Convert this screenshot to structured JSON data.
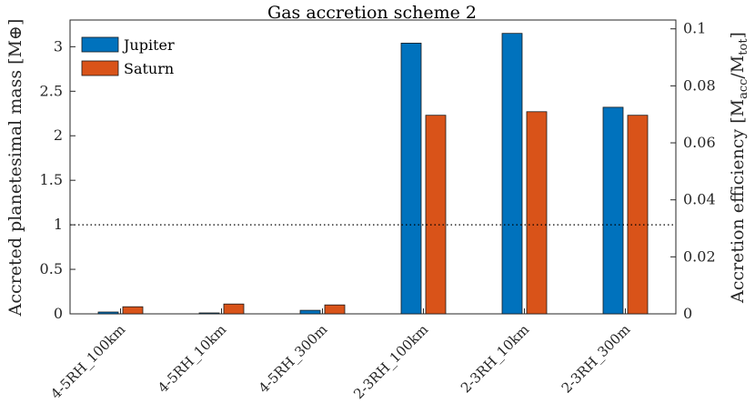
{
  "chart_data": {
    "type": "bar",
    "title": "Gas accretion scheme 2",
    "ylabel": "Accreted planetesimal mass [M⊕]",
    "ylabel_right_main": "Accretion efficiency [M",
    "ylabel_right_sub1": "acc",
    "ylabel_right_mid": "/M",
    "ylabel_right_sub2": "tot",
    "ylabel_right_end": "]",
    "categories": [
      "4-5RH_100km",
      "4-5RH_10km",
      "4-5RH_300m",
      "2-3RH_100km",
      "2-3RH_10km",
      "2-3RH_300m"
    ],
    "series": [
      {
        "name": "Jupiter",
        "color": "#0072BD",
        "values": [
          0.02,
          0.01,
          0.04,
          3.04,
          3.15,
          2.32
        ]
      },
      {
        "name": "Saturn",
        "color": "#D95319",
        "values": [
          0.08,
          0.11,
          0.1,
          2.23,
          2.27,
          2.23
        ]
      }
    ],
    "ylim": [
      0,
      3.3
    ],
    "yticks": [
      0,
      0.5,
      1,
      1.5,
      2,
      2.5,
      3
    ],
    "ytick_labels": [
      "0",
      "0.5",
      "1",
      "1.5",
      "2",
      "2.5",
      "3"
    ],
    "y2lim": [
      0,
      0.1031
    ],
    "y2ticks": [
      0,
      0.02,
      0.04,
      0.06,
      0.08,
      0.1
    ],
    "y2tick_labels": [
      "0",
      "0.02",
      "0.04",
      "0.06",
      "0.08",
      "0.1"
    ],
    "reference_line": {
      "y": 1,
      "style": "dotted"
    },
    "legend": "top-left",
    "grid": false
  }
}
